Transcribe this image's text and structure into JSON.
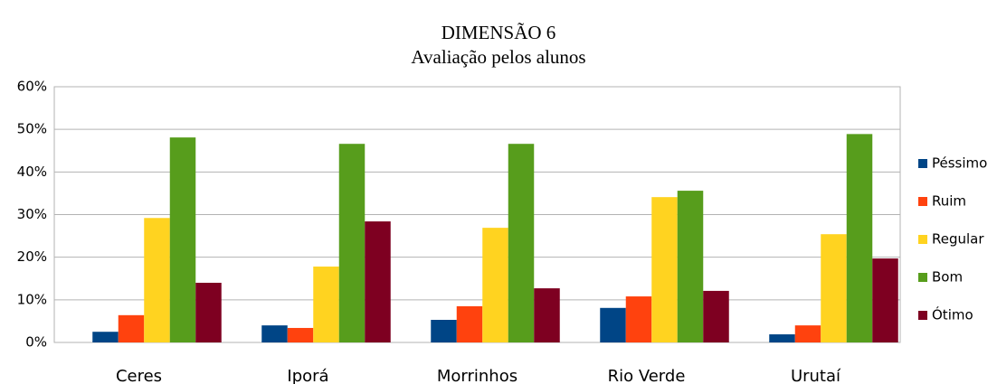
{
  "chart_data": {
    "type": "bar",
    "title": "DIMENSÃO 6",
    "subtitle": "Avaliação pelos alunos",
    "categories": [
      "Ceres",
      "Iporá",
      "Morrinhos",
      "Rio Verde",
      "Urutaí"
    ],
    "series": [
      {
        "name": "Péssimo",
        "color": "#004586",
        "values": [
          2.5,
          4.0,
          5.3,
          8.1,
          1.9
        ]
      },
      {
        "name": "Ruim",
        "color": "#ff420e",
        "values": [
          6.4,
          3.4,
          8.5,
          10.8,
          4.0
        ]
      },
      {
        "name": "Regular",
        "color": "#ffd320",
        "values": [
          29.2,
          17.8,
          26.9,
          34.1,
          25.4
        ]
      },
      {
        "name": "Bom",
        "color": "#579d1c",
        "values": [
          48.1,
          46.6,
          46.6,
          35.6,
          48.9
        ]
      },
      {
        "name": "Ótimo",
        "color": "#7e0021",
        "values": [
          14.0,
          28.4,
          12.7,
          12.1,
          19.7
        ]
      }
    ],
    "ylim": [
      0,
      60
    ],
    "yticks": [
      {
        "value": 0,
        "label": "0%"
      },
      {
        "value": 10,
        "label": "10%"
      },
      {
        "value": 20,
        "label": "20%"
      },
      {
        "value": 30,
        "label": "30%"
      },
      {
        "value": 40,
        "label": "40%"
      },
      {
        "value": 50,
        "label": "50%"
      },
      {
        "value": 60,
        "label": "60%"
      }
    ],
    "grid": true,
    "legend": "right"
  }
}
